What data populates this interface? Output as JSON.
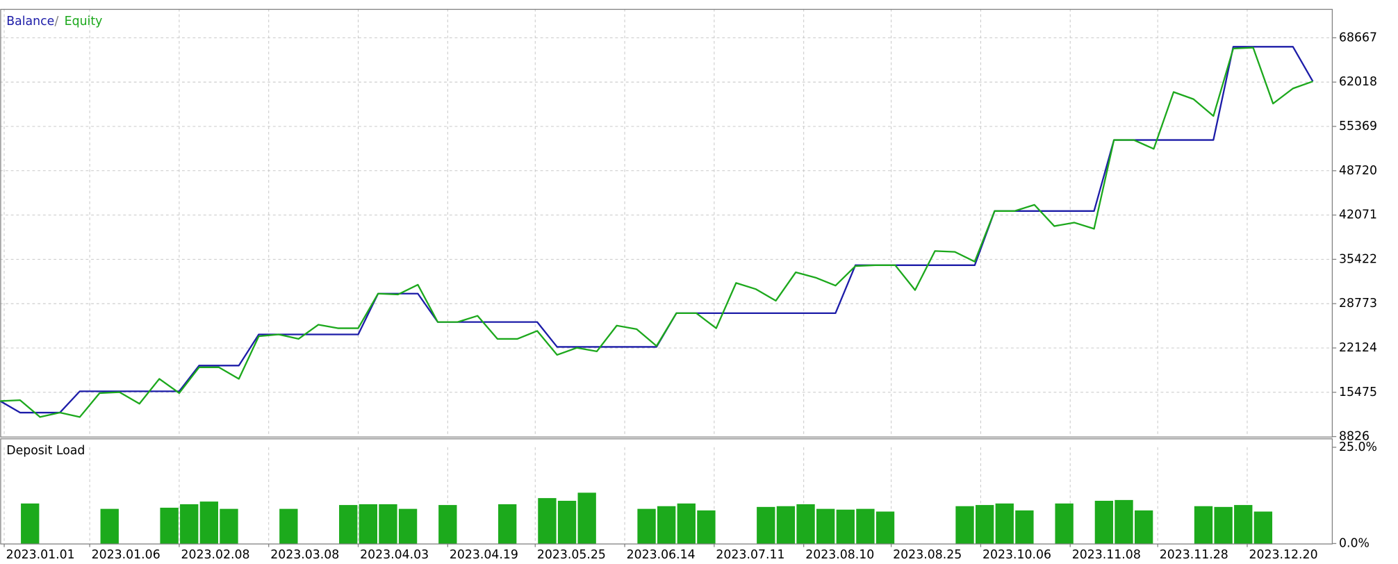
{
  "chart_data": [
    {
      "type": "line",
      "x": [
        0,
        1,
        2,
        3,
        4,
        5,
        6,
        7,
        8,
        9,
        10,
        11,
        12,
        13,
        14,
        15,
        16,
        17,
        18,
        19,
        20,
        21,
        22,
        23,
        24,
        25,
        26,
        27,
        28,
        29,
        30,
        31,
        32,
        33,
        34,
        35,
        36,
        37,
        38,
        39,
        40,
        41,
        42,
        43,
        44,
        45,
        46,
        47,
        48,
        49,
        50,
        51,
        52,
        53,
        54,
        55,
        56,
        57,
        58,
        59,
        60,
        61,
        62,
        63,
        64,
        65,
        66
      ],
      "xlim": [
        0,
        67
      ],
      "ylim": [
        8826,
        73000
      ],
      "yticks": [
        8826,
        15475,
        22124,
        28773,
        35422,
        42071,
        48720,
        55369,
        62018,
        68667
      ],
      "grid": true,
      "series": [
        {
          "name": "Balance",
          "color": "#1c1ca8",
          "values": [
            14156,
            12424,
            12424,
            12424,
            15622,
            15622,
            15622,
            15622,
            15622,
            15622,
            19486,
            19486,
            19486,
            24150,
            24150,
            24150,
            24150,
            24150,
            24150,
            30279,
            30279,
            30279,
            26015,
            26015,
            26015,
            26015,
            26015,
            26015,
            22284,
            22284,
            22284,
            22284,
            22284,
            22284,
            27348,
            27348,
            27348,
            27348,
            27348,
            27348,
            27348,
            27348,
            27348,
            34543,
            34543,
            34543,
            34543,
            34543,
            34543,
            34543,
            42672,
            42672,
            42672,
            42672,
            42672,
            42672,
            53332,
            53332,
            53332,
            53332,
            53332,
            53332,
            67323,
            67323,
            67323,
            67323,
            62126
          ]
        },
        {
          "name": "Equity",
          "color": "#1ca81c",
          "values": [
            14156,
            14289,
            11758,
            12424,
            11758,
            15355,
            15489,
            13756,
            17487,
            15355,
            19220,
            19220,
            17487,
            23883,
            24150,
            23484,
            25616,
            25083,
            25083,
            30279,
            30146,
            31612,
            26015,
            26015,
            26948,
            23484,
            23484,
            24683,
            21085,
            22151,
            21618,
            25482,
            24949,
            22418,
            27348,
            27348,
            25083,
            31878,
            30946,
            29213,
            33477,
            32678,
            31479,
            34410,
            34543,
            34543,
            30812,
            36675,
            36542,
            35076,
            42672,
            42672,
            43604,
            40406,
            40939,
            40007,
            53332,
            53332,
            51999,
            60527,
            59461,
            56929,
            67056,
            67190,
            58795,
            61060,
            62126
          ]
        }
      ]
    },
    {
      "type": "bar",
      "title": "Deposit Load",
      "color": "#1caa1c",
      "x": [
        1.5,
        5.5,
        8.5,
        9.5,
        10.5,
        11.5,
        14.5,
        17.5,
        18.5,
        19.5,
        20.5,
        22.5,
        25.5,
        27.5,
        28.5,
        29.5,
        32.5,
        33.5,
        34.5,
        35.5,
        38.5,
        39.5,
        40.5,
        41.5,
        42.5,
        43.5,
        44.5,
        48.5,
        49.5,
        50.5,
        51.5,
        53.5,
        55.5,
        56.5,
        57.5,
        60.5,
        61.5,
        62.5,
        63.5
      ],
      "values": [
        10.4,
        9.0,
        9.3,
        10.2,
        10.9,
        9.0,
        9.0,
        10.0,
        10.2,
        10.2,
        9.0,
        10.0,
        10.2,
        11.8,
        11.1,
        13.2,
        9.0,
        9.7,
        10.4,
        8.6,
        9.5,
        9.7,
        10.2,
        9.0,
        8.8,
        9.0,
        8.3,
        9.7,
        10.0,
        10.4,
        8.6,
        10.4,
        11.1,
        11.3,
        8.6,
        9.7,
        9.5,
        10.0,
        8.3
      ],
      "xlim": [
        0,
        67
      ],
      "ylim": [
        0,
        25
      ],
      "yticks": [
        {
          "value": 0,
          "label": "0.0%"
        },
        {
          "value": 25,
          "label": "25.0%"
        }
      ],
      "xticks": [
        {
          "value": 0.2,
          "label": "2023.01.01"
        },
        {
          "value": 4.5,
          "label": "2023.01.06"
        },
        {
          "value": 9.0,
          "label": "2023.02.08"
        },
        {
          "value": 13.5,
          "label": "2023.03.08"
        },
        {
          "value": 18.0,
          "label": "2023.04.03"
        },
        {
          "value": 22.5,
          "label": "2023.04.19"
        },
        {
          "value": 26.9,
          "label": "2023.05.25"
        },
        {
          "value": 31.4,
          "label": "2023.06.14"
        },
        {
          "value": 35.9,
          "label": "2023.07.11"
        },
        {
          "value": 40.4,
          "label": "2023.08.10"
        },
        {
          "value": 44.8,
          "label": "2023.08.25"
        },
        {
          "value": 49.3,
          "label": "2023.10.06"
        },
        {
          "value": 53.8,
          "label": "2023.11.08"
        },
        {
          "value": 58.2,
          "label": "2023.11.28"
        },
        {
          "value": 62.7,
          "label": "2023.12.20"
        }
      ],
      "grid": true
    }
  ]
}
